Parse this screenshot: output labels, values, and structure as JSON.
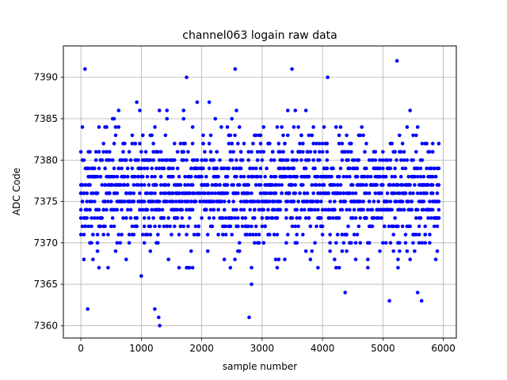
{
  "chart_data": {
    "type": "scatter",
    "title": "channel063 logain raw data",
    "xlabel": "sample number",
    "ylabel": "ADC Code",
    "xlim": [
      -290,
      6215
    ],
    "ylim": [
      7358.5,
      7393.8
    ],
    "xticks": [
      0,
      1000,
      2000,
      3000,
      4000,
      5000,
      6000
    ],
    "yticks": [
      7360,
      7365,
      7370,
      7375,
      7380,
      7385,
      7390
    ],
    "xtick_labels": [
      "0",
      "1000",
      "2000",
      "3000",
      "4000",
      "5000",
      "6000"
    ],
    "ytick_labels": [
      "7360",
      "7365",
      "7370",
      "7375",
      "7380",
      "7385",
      "7390"
    ],
    "grid": true,
    "marker_color": "#0000ff",
    "series": [
      {
        "marker": "circle",
        "x_range": [
          0,
          5925
        ],
        "x_step": 25,
        "y_center": 7376.2,
        "y_min": 7360,
        "y_max": 7392,
        "outliers": [
          {
            "x": 68,
            "y": 7391
          },
          {
            "x": 112,
            "y": 7362
          },
          {
            "x": 1223,
            "y": 7362
          },
          {
            "x": 1288,
            "y": 7361
          },
          {
            "x": 1305,
            "y": 7360
          },
          {
            "x": 1749,
            "y": 7390
          },
          {
            "x": 2554,
            "y": 7391
          },
          {
            "x": 2785,
            "y": 7361
          },
          {
            "x": 3495,
            "y": 7391
          },
          {
            "x": 4085,
            "y": 7390
          },
          {
            "x": 5233,
            "y": 7392
          },
          {
            "x": 5108,
            "y": 7363
          },
          {
            "x": 5640,
            "y": 7363
          }
        ]
      }
    ]
  }
}
